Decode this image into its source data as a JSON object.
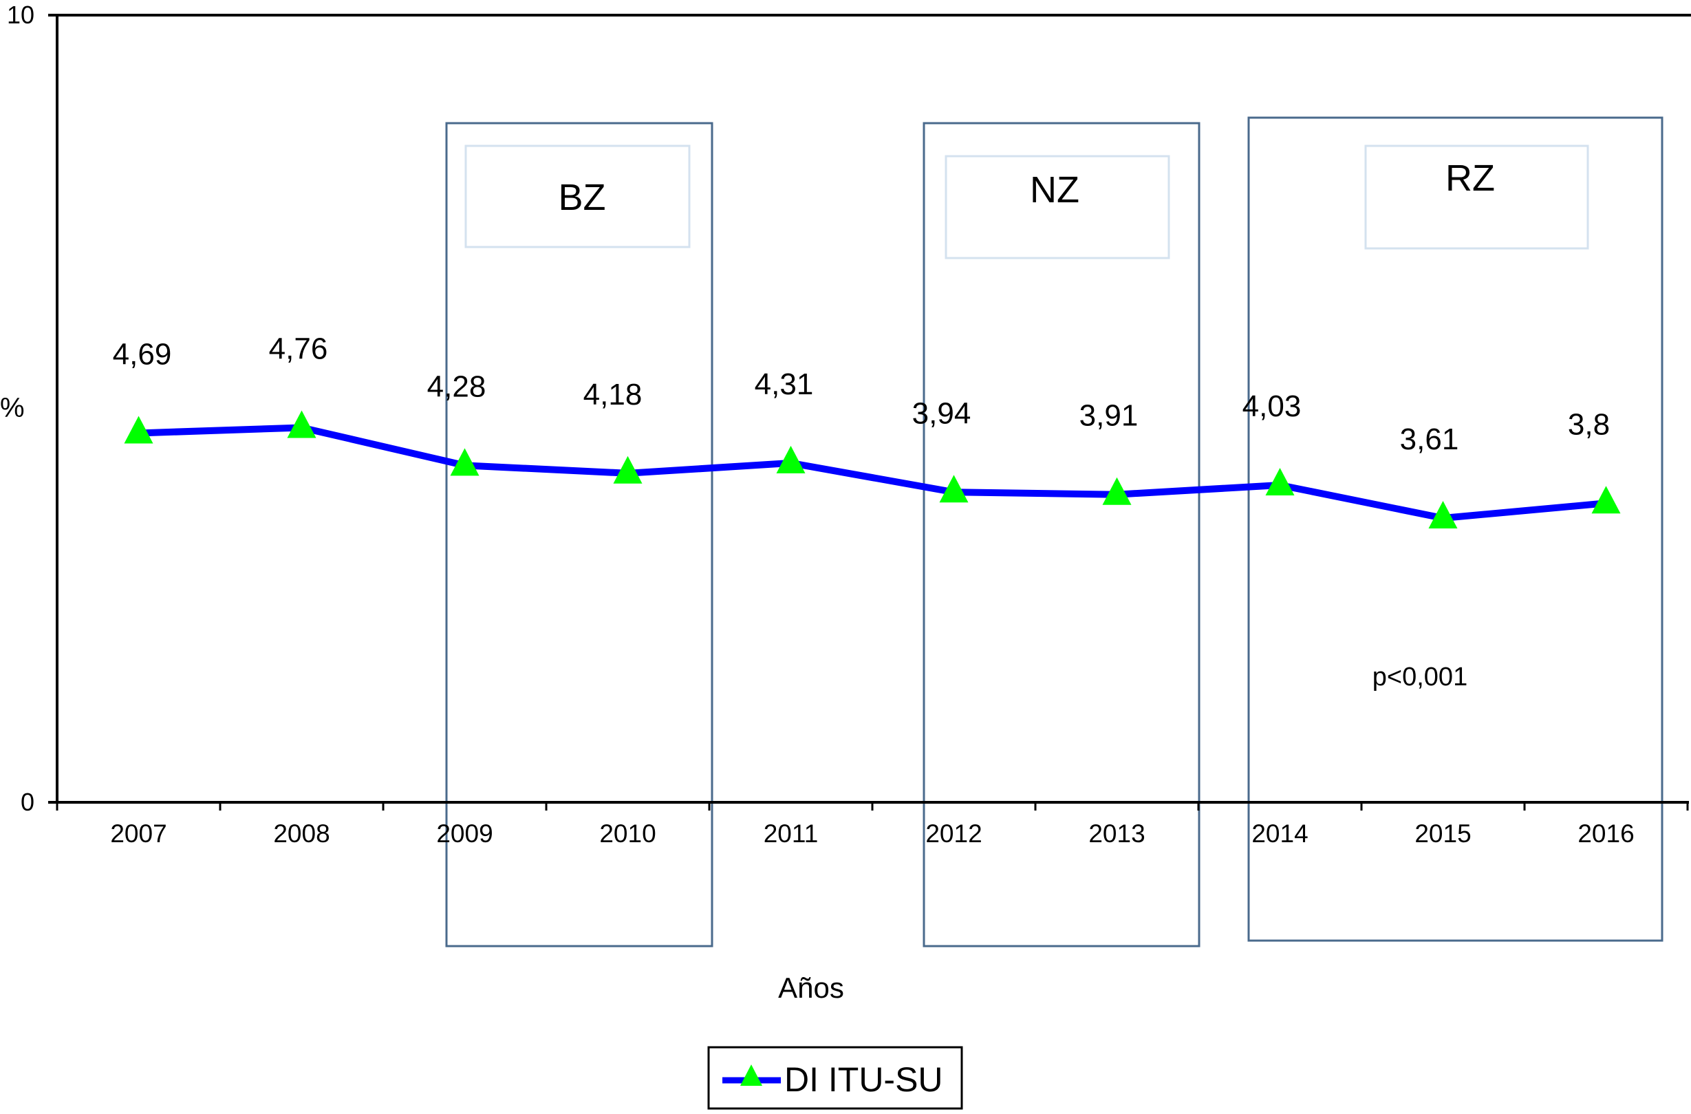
{
  "chart_data": {
    "type": "line",
    "title": "",
    "xlabel": "Años",
    "ylabel": "%",
    "ylim": [
      0,
      10
    ],
    "yticks": [
      "0",
      "10"
    ],
    "categories": [
      "2007",
      "2008",
      "2009",
      "2010",
      "2011",
      "2012",
      "2013",
      "2014",
      "2015",
      "2016"
    ],
    "series": [
      {
        "name": "DI ITU-SU",
        "values": [
          4.69,
          4.76,
          4.28,
          4.18,
          4.31,
          3.94,
          3.91,
          4.03,
          3.61,
          3.8
        ],
        "labels": [
          "4,69",
          "4,76",
          "4,28",
          "4,18",
          "4,31",
          "3,94",
          "3,91",
          "4,03",
          "3,61",
          "3,8"
        ],
        "line_color": "#0000ff",
        "marker_color": "#00ff00",
        "marker": "triangle"
      }
    ],
    "zones": [
      {
        "label": "BZ",
        "from": "2009",
        "to": "2010"
      },
      {
        "label": "NZ",
        "from": "2012",
        "to": "2013"
      },
      {
        "label": "RZ",
        "from": "2014",
        "to": "2016"
      }
    ],
    "annotation": "p<0,001",
    "legend": {
      "placement": "bottom-center",
      "label": "DI ITU-SU"
    },
    "grid": false
  }
}
